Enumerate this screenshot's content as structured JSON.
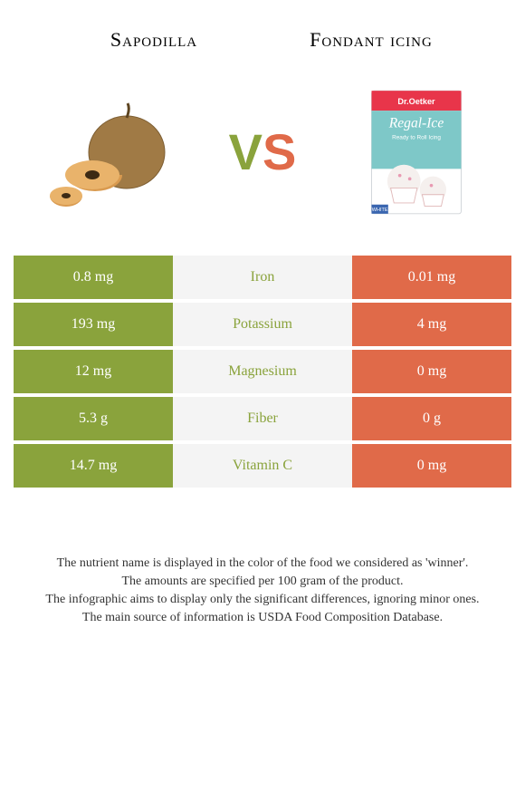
{
  "colors": {
    "left_winner": "#8aa33c",
    "right": "#e06a49",
    "mid_bg": "#f4f4f4",
    "text": "#333333"
  },
  "titles": {
    "left": "Sapodilla",
    "right": "Fondant icing"
  },
  "vs": {
    "v": "V",
    "s": "S"
  },
  "rows": [
    {
      "left_val": "0.8 mg",
      "nutrient": "Iron",
      "right_val": "0.01 mg",
      "winner": "left"
    },
    {
      "left_val": "193 mg",
      "nutrient": "Potassium",
      "right_val": "4 mg",
      "winner": "left"
    },
    {
      "left_val": "12 mg",
      "nutrient": "Magnesium",
      "right_val": "0 mg",
      "winner": "left"
    },
    {
      "left_val": "5.3 g",
      "nutrient": "Fiber",
      "right_val": "0 g",
      "winner": "left"
    },
    {
      "left_val": "14.7 mg",
      "nutrient": "Vitamin C",
      "right_val": "0 mg",
      "winner": "left"
    }
  ],
  "footnotes": [
    "The nutrient name is displayed in the color of the food we considered as 'winner'.",
    "The amounts are specified per 100 gram of the product.",
    "The infographic aims to display only the significant differences, ignoring minor ones.",
    "The main source of information is USDA Food Composition Database."
  ]
}
